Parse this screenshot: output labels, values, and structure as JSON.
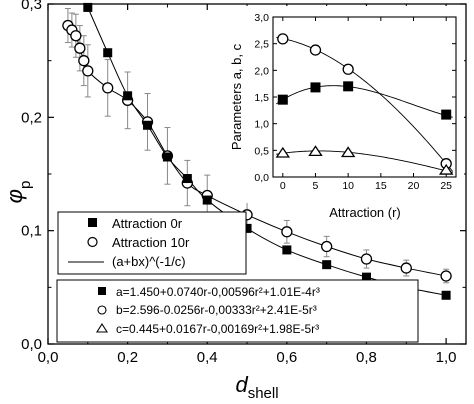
{
  "chart_data": [
    {
      "type": "scatter",
      "xlabel": "d",
      "xlabel_sub": "shell",
      "ylabel": "φ",
      "ylabel_sub": "p",
      "xlim": [
        0.0,
        1.05
      ],
      "ylim": [
        0.0,
        0.3
      ],
      "xticks": [
        "0,0",
        "0,2",
        "0,4",
        "0,6",
        "0,8",
        "1,0"
      ],
      "yticks": [
        "0,0",
        "0,1",
        "0,2",
        "0,3"
      ],
      "grid": false,
      "legend_position": "bottom-left",
      "series": [
        {
          "name": "Attraction 0r",
          "marker": "filled-square",
          "x": [
            0.1,
            0.15,
            0.2,
            0.25,
            0.3,
            0.35,
            0.4,
            0.5,
            0.6,
            0.7,
            0.8,
            0.9,
            1.0
          ],
          "y": [
            0.297,
            0.257,
            0.219,
            0.193,
            0.165,
            0.146,
            0.127,
            0.102,
            0.083,
            0.07,
            0.059,
            0.05,
            0.043
          ]
        },
        {
          "name": "Attraction 10r",
          "marker": "open-circle",
          "x": [
            0.05,
            0.06,
            0.07,
            0.08,
            0.09,
            0.1,
            0.15,
            0.2,
            0.25,
            0.3,
            0.35,
            0.4,
            0.5,
            0.6,
            0.7,
            0.8,
            0.9,
            1.0
          ],
          "y": [
            0.281,
            0.277,
            0.272,
            0.261,
            0.25,
            0.241,
            0.226,
            0.215,
            0.196,
            0.166,
            0.142,
            0.131,
            0.114,
            0.099,
            0.086,
            0.075,
            0.067,
            0.06
          ],
          "error": [
            0.015,
            0.015,
            0.019,
            0.02,
            0.022,
            0.023,
            0.025,
            0.025,
            0.025,
            0.025,
            0.02,
            0.018,
            0.012,
            0.01,
            0.009,
            0.008,
            0.007,
            0.006
          ]
        },
        {
          "name": "(a+bx)^(-1/c)",
          "marker": "line",
          "curves": [
            {
              "a": 1.45,
              "b": 0.074,
              "c": 0.445,
              "from": 0.1
            },
            {
              "a": 2.596,
              "b": -0.0256,
              "c": 0.445,
              "from": 0.05
            }
          ]
        }
      ]
    },
    {
      "type": "scatter",
      "xlabel": "Attraction (r)",
      "ylabel": "Parameters a, b, c",
      "xlim": [
        -1.5,
        26.5
      ],
      "ylim": [
        0.0,
        3.0
      ],
      "xticks": [
        "0",
        "5",
        "10",
        "15",
        "20",
        "25"
      ],
      "yticks": [
        "0,0",
        "0,5",
        "1,0",
        "1,5",
        "2,0",
        "2,5",
        "3,0"
      ],
      "legend_position": "bottom",
      "series": [
        {
          "name": "a=1.450+0.0740r-0,00596r²+1.01E-4r³",
          "marker": "filled-square",
          "x": [
            0,
            5,
            10,
            25
          ],
          "y": [
            1.45,
            1.68,
            1.7,
            1.17
          ],
          "fit": [
            1.45,
            0.074,
            -0.00596,
            0.000101
          ]
        },
        {
          "name": "b=2.596-0.0256r-0,00333r²+2.41E-5r³",
          "marker": "open-circle",
          "x": [
            0,
            5,
            10,
            25
          ],
          "y": [
            2.59,
            2.38,
            2.02,
            0.25
          ],
          "fit": [
            2.596,
            -0.0256,
            -0.00333,
            2.41e-05
          ]
        },
        {
          "name": "c=0.445+0.0167r-0,00169r²+1.98E-5r³",
          "marker": "open-triangle",
          "x": [
            0,
            5,
            10,
            25
          ],
          "y": [
            0.45,
            0.48,
            0.46,
            0.13
          ],
          "fit": [
            0.445,
            0.0167,
            -0.00169,
            1.98e-05
          ]
        }
      ]
    }
  ]
}
